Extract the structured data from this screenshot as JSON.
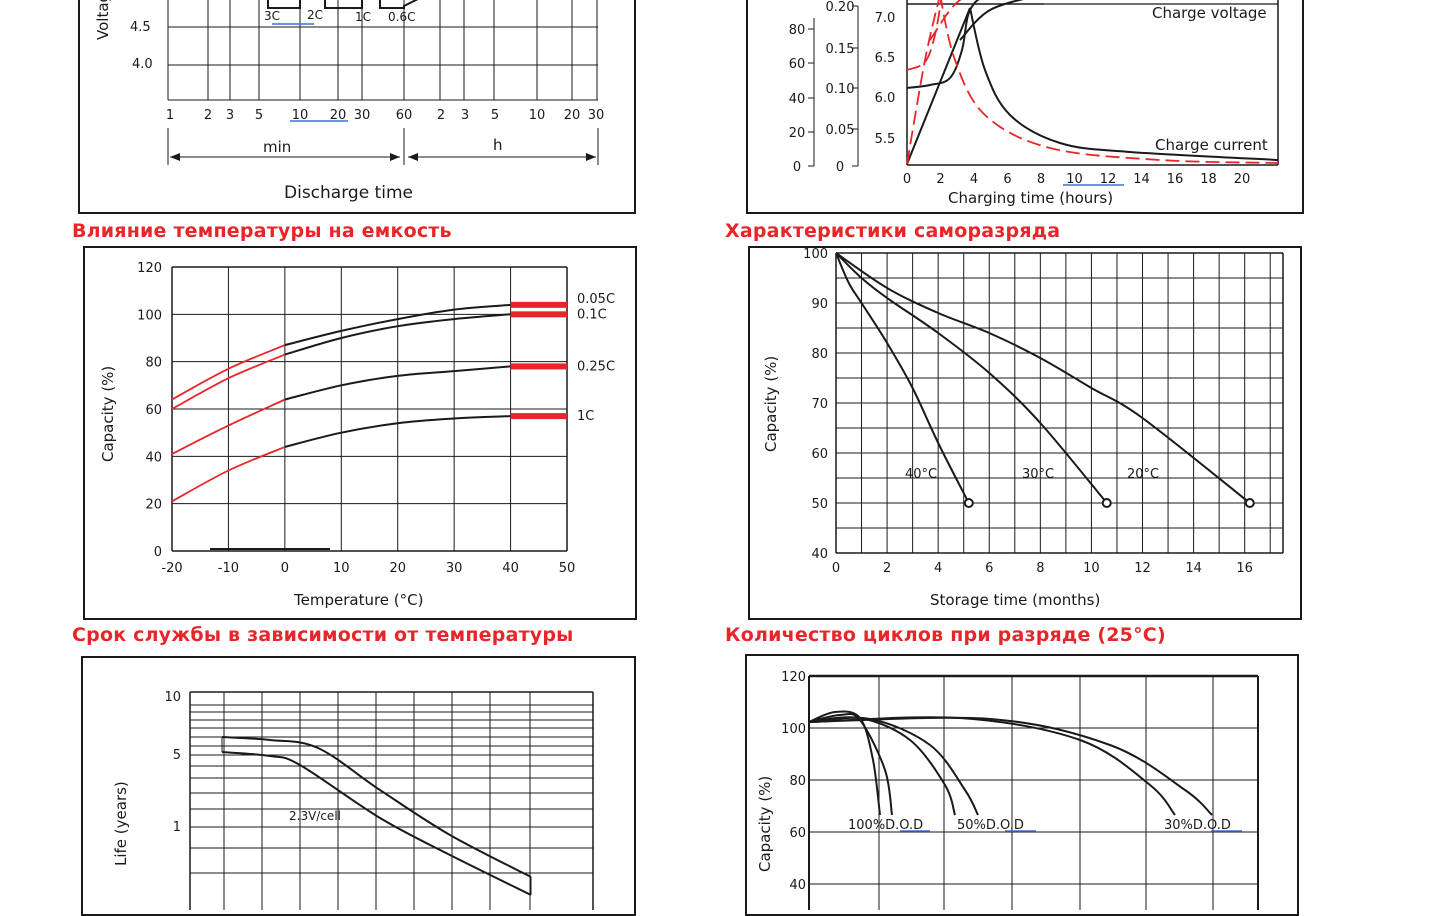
{
  "titles": {
    "temperature_capacity": "Влияние температуры на емкость",
    "self_discharge": "Характеристики саморазряда",
    "life_vs_temperature": "Срок службы в зависимости от температуры",
    "cycle_life": "Количество циклов при разряде (25°C)"
  },
  "colors": {
    "accent": "#e8262a",
    "ink": "#1a1a1a",
    "link_underline": "#3b6fd6"
  },
  "chart_data": [
    {
      "id": "discharge_time",
      "type": "line",
      "title": "",
      "xlabel": "Discharge time",
      "ylabel": "Voltage",
      "y_ticks": [
        "4.5",
        "4.0"
      ],
      "x_ticks_min": [
        "1",
        "2",
        "3",
        "5",
        "10",
        "20",
        "30",
        "60"
      ],
      "x_ticks_h": [
        "2",
        "3",
        "5",
        "10",
        "20",
        "30"
      ],
      "range_labels": [
        "min",
        "h"
      ],
      "curve_labels": [
        "3C",
        "2C",
        "1C",
        "0.6C"
      ]
    },
    {
      "id": "charging",
      "type": "line",
      "title": "",
      "xlabel": "Charging time (hours)",
      "x": [
        0,
        2,
        4,
        6,
        8,
        10,
        12,
        14,
        16,
        18,
        20
      ],
      "y_ticks_capacity": [
        "0",
        "20",
        "40",
        "60",
        "80"
      ],
      "y_ticks_current": [
        "0",
        "0.05",
        "0.10",
        "0.15",
        "0.20"
      ],
      "y_ticks_voltage": [
        "5.5",
        "6.0",
        "6.5",
        "7.0"
      ],
      "series": [
        {
          "name": "Charge voltage",
          "values_x": [
            0,
            2,
            3,
            3.6,
            5,
            8,
            12,
            20
          ],
          "values_y": [
            6.1,
            6.12,
            6.3,
            7.0,
            7.1,
            7.15,
            7.15,
            7.15
          ]
        },
        {
          "name": "Charge current",
          "values_x": [
            0,
            3.7,
            5,
            7,
            10,
            14,
            20
          ],
          "values_y": [
            0.0,
            0.2,
            0.12,
            0.05,
            0.025,
            0.012,
            0.006
          ]
        }
      ]
    },
    {
      "id": "temperature_capacity",
      "type": "line",
      "title": "",
      "xlabel": "Temperature (°C)",
      "ylabel": "Capacity (%)",
      "x_ticks": [
        "-20",
        "-10",
        "0",
        "10",
        "20",
        "30",
        "40",
        "50"
      ],
      "y_ticks": [
        "0",
        "20",
        "40",
        "60",
        "80",
        "100",
        "120"
      ],
      "xlim": [
        -20,
        50
      ],
      "ylim": [
        0,
        120
      ],
      "series": [
        {
          "name": "0.05C",
          "x": [
            -20,
            -10,
            0,
            10,
            20,
            30,
            40
          ],
          "values": [
            64,
            77,
            87,
            93,
            98,
            102,
            104
          ]
        },
        {
          "name": "0.1C",
          "x": [
            -20,
            -10,
            0,
            10,
            20,
            30,
            40
          ],
          "values": [
            60,
            73,
            83,
            90,
            95,
            98,
            100
          ]
        },
        {
          "name": "0.25C",
          "x": [
            -20,
            -10,
            0,
            10,
            20,
            30,
            40
          ],
          "values": [
            41,
            53,
            64,
            70,
            74,
            76,
            78
          ]
        },
        {
          "name": "1C",
          "x": [
            -20,
            -10,
            0,
            10,
            20,
            30,
            40
          ],
          "values": [
            21,
            34,
            44,
            50,
            54,
            56,
            57
          ]
        }
      ]
    },
    {
      "id": "self_discharge",
      "type": "line",
      "title": "",
      "xlabel": "Storage time (months)",
      "ylabel": "Capacity (%)",
      "x_ticks": [
        "0",
        "2",
        "4",
        "6",
        "8",
        "10",
        "12",
        "14",
        "16"
      ],
      "y_ticks": [
        "40",
        "50",
        "60",
        "70",
        "80",
        "90",
        "100"
      ],
      "xlim": [
        0,
        17.5
      ],
      "ylim": [
        40,
        100
      ],
      "series": [
        {
          "name": "40°C",
          "x": [
            0,
            0.5,
            1,
            2,
            3,
            4,
            5.2
          ],
          "values": [
            100,
            94,
            90,
            82,
            73,
            62,
            50
          ]
        },
        {
          "name": "30°C",
          "x": [
            0,
            1,
            2,
            4,
            6,
            8,
            10.6
          ],
          "values": [
            100,
            95,
            91,
            84,
            76,
            66,
            50
          ]
        },
        {
          "name": "20°C",
          "x": [
            0,
            2,
            4,
            6,
            8,
            10,
            12,
            16.2
          ],
          "values": [
            100,
            93,
            88,
            84,
            79,
            73,
            67,
            50
          ]
        }
      ]
    },
    {
      "id": "life_vs_temperature",
      "type": "line",
      "title": "",
      "ylabel": "Life (years)",
      "y_ticks": [
        "10",
        "5",
        "1"
      ],
      "series_label": "2.3V/cell"
    },
    {
      "id": "cycle_life",
      "type": "line",
      "title": "",
      "ylabel": "Capacity (%)",
      "y_ticks": [
        "40",
        "60",
        "80",
        "100",
        "120"
      ],
      "ylim": [
        30,
        120
      ],
      "series": [
        {
          "name": "100%D.O.D"
        },
        {
          "name": "50%D.O.D"
        },
        {
          "name": "30%D.O.D"
        }
      ]
    }
  ]
}
